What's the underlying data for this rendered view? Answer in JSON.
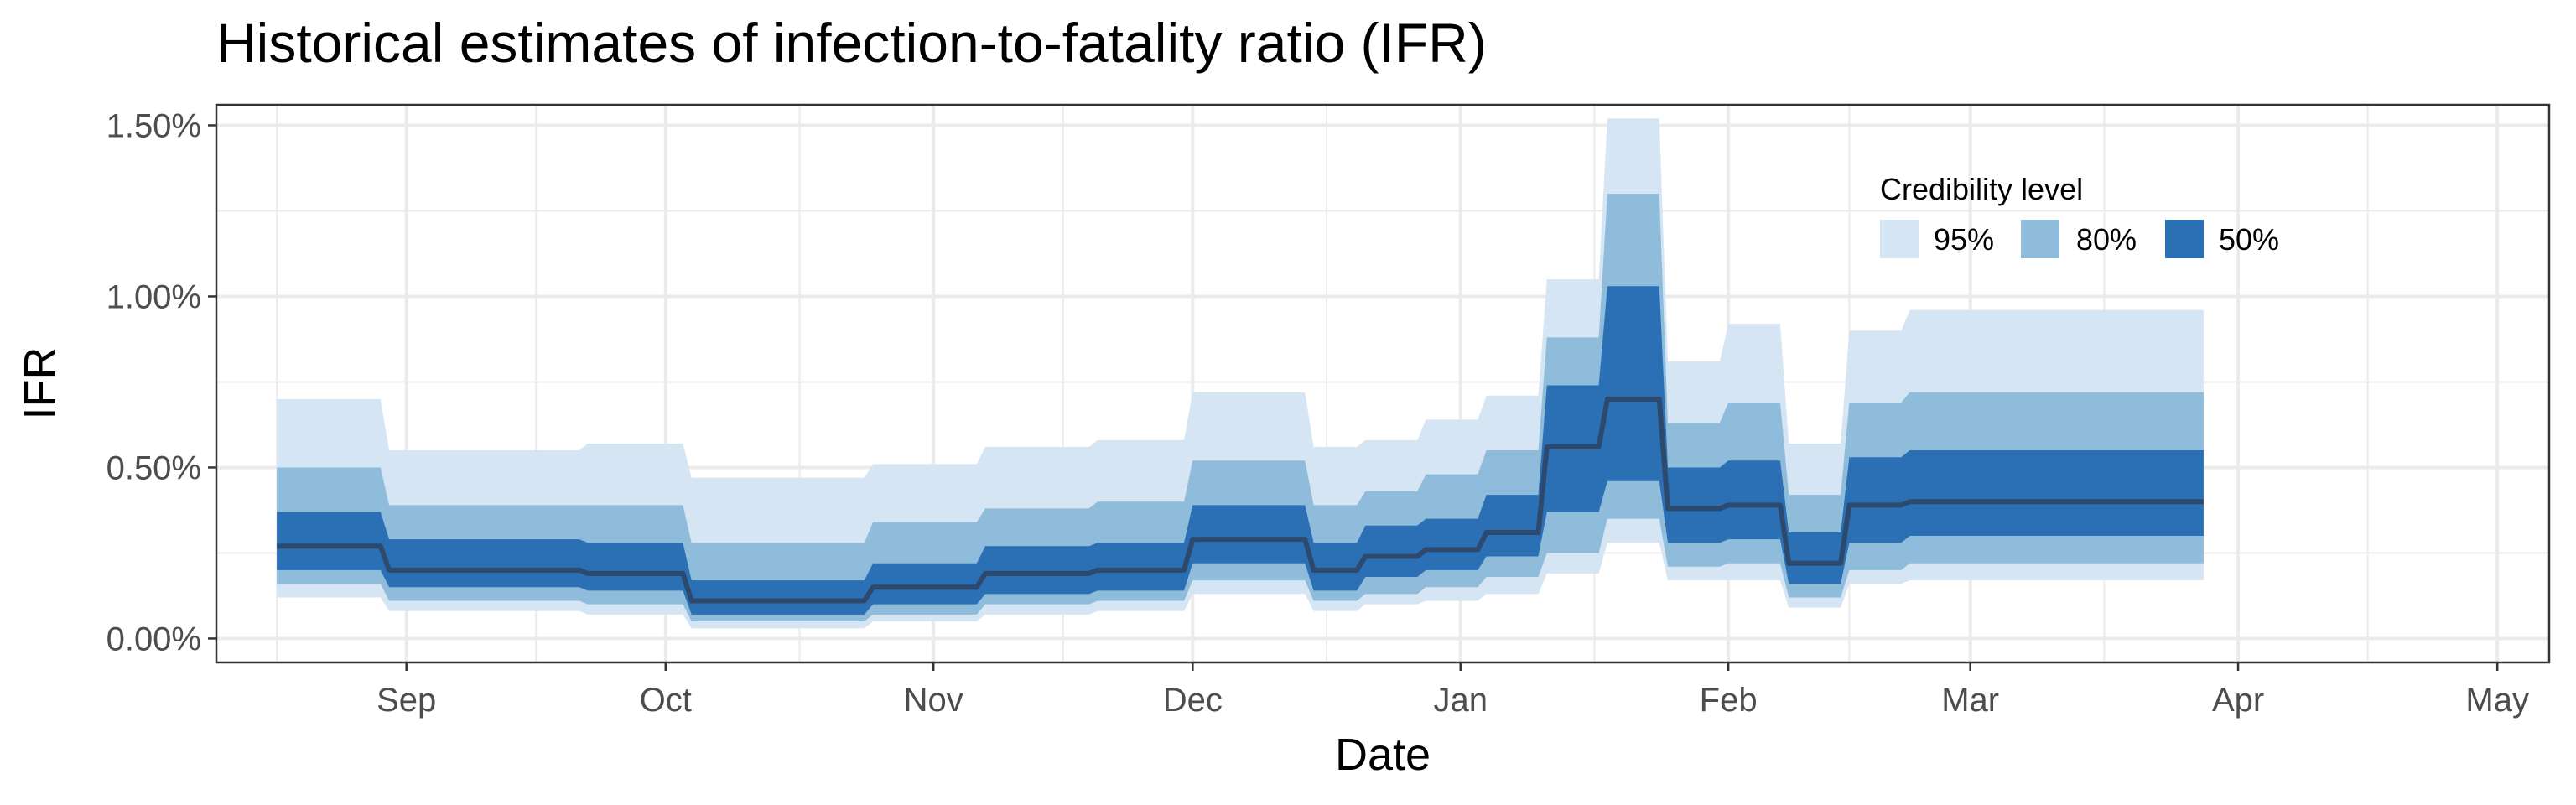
{
  "chart_data": {
    "type": "area",
    "title": "Historical estimates of infection-to-fatality ratio (IFR)",
    "xlabel": "Date",
    "ylabel": "IFR",
    "x_ticks": [
      {
        "label": "Sep",
        "date": "2020-09-01"
      },
      {
        "label": "Oct",
        "date": "2020-10-01"
      },
      {
        "label": "Nov",
        "date": "2020-11-01"
      },
      {
        "label": "Dec",
        "date": "2020-12-01"
      },
      {
        "label": "Jan",
        "date": "2021-01-01"
      },
      {
        "label": "Feb",
        "date": "2021-02-01"
      },
      {
        "label": "Mar",
        "date": "2021-03-01"
      },
      {
        "label": "Apr",
        "date": "2021-04-01"
      },
      {
        "label": "May",
        "date": "2021-05-01"
      }
    ],
    "y_ticks": [
      {
        "label": "0.00%",
        "value": 0.0
      },
      {
        "label": "0.50%",
        "value": 0.5
      },
      {
        "label": "1.00%",
        "value": 1.0
      },
      {
        "label": "1.50%",
        "value": 1.5
      }
    ],
    "xlim": [
      "2020-08-10",
      "2021-05-07"
    ],
    "ylim": [
      -0.07,
      1.56
    ],
    "grid": true,
    "legend": {
      "title": "Credibility level",
      "placement": "top-right",
      "entries": [
        {
          "label": "95%",
          "color": "#d6e5f4"
        },
        {
          "label": "80%",
          "color": "#8fbcdb"
        },
        {
          "label": "50%",
          "color": "#2b6fb5"
        }
      ]
    },
    "median_color": "#2d4a6e",
    "series": [
      {
        "date": "2020-08-17",
        "median": 0.27,
        "lo50": 0.2,
        "hi50": 0.37,
        "lo80": 0.16,
        "hi80": 0.5,
        "lo95": 0.12,
        "hi95": 0.7
      },
      {
        "date": "2020-08-29",
        "median": 0.27,
        "lo50": 0.2,
        "hi50": 0.37,
        "lo80": 0.16,
        "hi80": 0.5,
        "lo95": 0.12,
        "hi95": 0.7
      },
      {
        "date": "2020-08-30",
        "median": 0.2,
        "lo50": 0.15,
        "hi50": 0.29,
        "lo80": 0.11,
        "hi80": 0.39,
        "lo95": 0.08,
        "hi95": 0.55
      },
      {
        "date": "2020-09-21",
        "median": 0.2,
        "lo50": 0.15,
        "hi50": 0.29,
        "lo80": 0.11,
        "hi80": 0.39,
        "lo95": 0.08,
        "hi95": 0.55
      },
      {
        "date": "2020-09-22",
        "median": 0.19,
        "lo50": 0.14,
        "hi50": 0.28,
        "lo80": 0.1,
        "hi80": 0.39,
        "lo95": 0.07,
        "hi95": 0.57
      },
      {
        "date": "2020-10-03",
        "median": 0.19,
        "lo50": 0.14,
        "hi50": 0.28,
        "lo80": 0.1,
        "hi80": 0.39,
        "lo95": 0.07,
        "hi95": 0.57
      },
      {
        "date": "2020-10-04",
        "median": 0.11,
        "lo50": 0.07,
        "hi50": 0.17,
        "lo80": 0.05,
        "hi80": 0.28,
        "lo95": 0.03,
        "hi95": 0.47
      },
      {
        "date": "2020-10-24",
        "median": 0.11,
        "lo50": 0.07,
        "hi50": 0.17,
        "lo80": 0.05,
        "hi80": 0.28,
        "lo95": 0.03,
        "hi95": 0.47
      },
      {
        "date": "2020-10-25",
        "median": 0.15,
        "lo50": 0.1,
        "hi50": 0.22,
        "lo80": 0.07,
        "hi80": 0.34,
        "lo95": 0.05,
        "hi95": 0.51
      },
      {
        "date": "2020-11-06",
        "median": 0.15,
        "lo50": 0.1,
        "hi50": 0.22,
        "lo80": 0.07,
        "hi80": 0.34,
        "lo95": 0.05,
        "hi95": 0.51
      },
      {
        "date": "2020-11-07",
        "median": 0.19,
        "lo50": 0.13,
        "hi50": 0.27,
        "lo80": 0.1,
        "hi80": 0.38,
        "lo95": 0.07,
        "hi95": 0.56
      },
      {
        "date": "2020-11-19",
        "median": 0.19,
        "lo50": 0.13,
        "hi50": 0.27,
        "lo80": 0.1,
        "hi80": 0.38,
        "lo95": 0.07,
        "hi95": 0.56
      },
      {
        "date": "2020-11-20",
        "median": 0.2,
        "lo50": 0.14,
        "hi50": 0.28,
        "lo80": 0.11,
        "hi80": 0.4,
        "lo95": 0.08,
        "hi95": 0.58
      },
      {
        "date": "2020-11-30",
        "median": 0.2,
        "lo50": 0.14,
        "hi50": 0.28,
        "lo80": 0.11,
        "hi80": 0.4,
        "lo95": 0.08,
        "hi95": 0.58
      },
      {
        "date": "2020-12-01",
        "median": 0.29,
        "lo50": 0.22,
        "hi50": 0.39,
        "lo80": 0.17,
        "hi80": 0.52,
        "lo95": 0.13,
        "hi95": 0.72
      },
      {
        "date": "2020-12-14",
        "median": 0.29,
        "lo50": 0.22,
        "hi50": 0.39,
        "lo80": 0.17,
        "hi80": 0.52,
        "lo95": 0.13,
        "hi95": 0.72
      },
      {
        "date": "2020-12-15",
        "median": 0.2,
        "lo50": 0.14,
        "hi50": 0.28,
        "lo80": 0.11,
        "hi80": 0.39,
        "lo95": 0.08,
        "hi95": 0.56
      },
      {
        "date": "2020-12-20",
        "median": 0.2,
        "lo50": 0.14,
        "hi50": 0.28,
        "lo80": 0.11,
        "hi80": 0.39,
        "lo95": 0.08,
        "hi95": 0.56
      },
      {
        "date": "2020-12-21",
        "median": 0.24,
        "lo50": 0.18,
        "hi50": 0.33,
        "lo80": 0.13,
        "hi80": 0.43,
        "lo95": 0.1,
        "hi95": 0.58
      },
      {
        "date": "2020-12-27",
        "median": 0.24,
        "lo50": 0.18,
        "hi50": 0.33,
        "lo80": 0.13,
        "hi80": 0.43,
        "lo95": 0.1,
        "hi95": 0.58
      },
      {
        "date": "2020-12-28",
        "median": 0.26,
        "lo50": 0.2,
        "hi50": 0.35,
        "lo80": 0.15,
        "hi80": 0.48,
        "lo95": 0.11,
        "hi95": 0.64
      },
      {
        "date": "2021-01-03",
        "median": 0.26,
        "lo50": 0.2,
        "hi50": 0.35,
        "lo80": 0.15,
        "hi80": 0.48,
        "lo95": 0.11,
        "hi95": 0.64
      },
      {
        "date": "2021-01-04",
        "median": 0.31,
        "lo50": 0.24,
        "hi50": 0.42,
        "lo80": 0.18,
        "hi80": 0.55,
        "lo95": 0.13,
        "hi95": 0.71
      },
      {
        "date": "2021-01-10",
        "median": 0.31,
        "lo50": 0.24,
        "hi50": 0.42,
        "lo80": 0.18,
        "hi80": 0.55,
        "lo95": 0.13,
        "hi95": 0.71
      },
      {
        "date": "2021-01-11",
        "median": 0.56,
        "lo50": 0.37,
        "hi50": 0.74,
        "lo80": 0.25,
        "hi80": 0.88,
        "lo95": 0.19,
        "hi95": 1.05
      },
      {
        "date": "2021-01-17",
        "median": 0.56,
        "lo50": 0.37,
        "hi50": 0.74,
        "lo80": 0.25,
        "hi80": 0.88,
        "lo95": 0.19,
        "hi95": 1.05
      },
      {
        "date": "2021-01-18",
        "median": 0.7,
        "lo50": 0.46,
        "hi50": 1.03,
        "lo80": 0.35,
        "hi80": 1.3,
        "lo95": 0.28,
        "hi95": 1.52
      },
      {
        "date": "2021-01-24",
        "median": 0.7,
        "lo50": 0.46,
        "hi50": 1.03,
        "lo80": 0.35,
        "hi80": 1.3,
        "lo95": 0.28,
        "hi95": 1.52
      },
      {
        "date": "2021-01-25",
        "median": 0.38,
        "lo50": 0.28,
        "hi50": 0.5,
        "lo80": 0.21,
        "hi80": 0.63,
        "lo95": 0.17,
        "hi95": 0.81
      },
      {
        "date": "2021-01-31",
        "median": 0.38,
        "lo50": 0.28,
        "hi50": 0.5,
        "lo80": 0.21,
        "hi80": 0.63,
        "lo95": 0.17,
        "hi95": 0.81
      },
      {
        "date": "2021-02-01",
        "median": 0.39,
        "lo50": 0.29,
        "hi50": 0.52,
        "lo80": 0.22,
        "hi80": 0.69,
        "lo95": 0.17,
        "hi95": 0.92
      },
      {
        "date": "2021-02-07",
        "median": 0.39,
        "lo50": 0.29,
        "hi50": 0.52,
        "lo80": 0.22,
        "hi80": 0.69,
        "lo95": 0.17,
        "hi95": 0.92
      },
      {
        "date": "2021-02-08",
        "median": 0.22,
        "lo50": 0.16,
        "hi50": 0.31,
        "lo80": 0.12,
        "hi80": 0.42,
        "lo95": 0.09,
        "hi95": 0.57
      },
      {
        "date": "2021-02-14",
        "median": 0.22,
        "lo50": 0.16,
        "hi50": 0.31,
        "lo80": 0.12,
        "hi80": 0.42,
        "lo95": 0.09,
        "hi95": 0.57
      },
      {
        "date": "2021-02-15",
        "median": 0.39,
        "lo50": 0.28,
        "hi50": 0.53,
        "lo80": 0.2,
        "hi80": 0.69,
        "lo95": 0.16,
        "hi95": 0.9
      },
      {
        "date": "2021-02-21",
        "median": 0.39,
        "lo50": 0.28,
        "hi50": 0.53,
        "lo80": 0.2,
        "hi80": 0.69,
        "lo95": 0.16,
        "hi95": 0.9
      },
      {
        "date": "2021-02-22",
        "median": 0.4,
        "lo50": 0.3,
        "hi50": 0.55,
        "lo80": 0.22,
        "hi80": 0.72,
        "lo95": 0.17,
        "hi95": 0.96
      },
      {
        "date": "2021-03-28",
        "median": 0.4,
        "lo50": 0.3,
        "hi50": 0.55,
        "lo80": 0.22,
        "hi80": 0.72,
        "lo95": 0.17,
        "hi95": 0.96
      }
    ]
  }
}
